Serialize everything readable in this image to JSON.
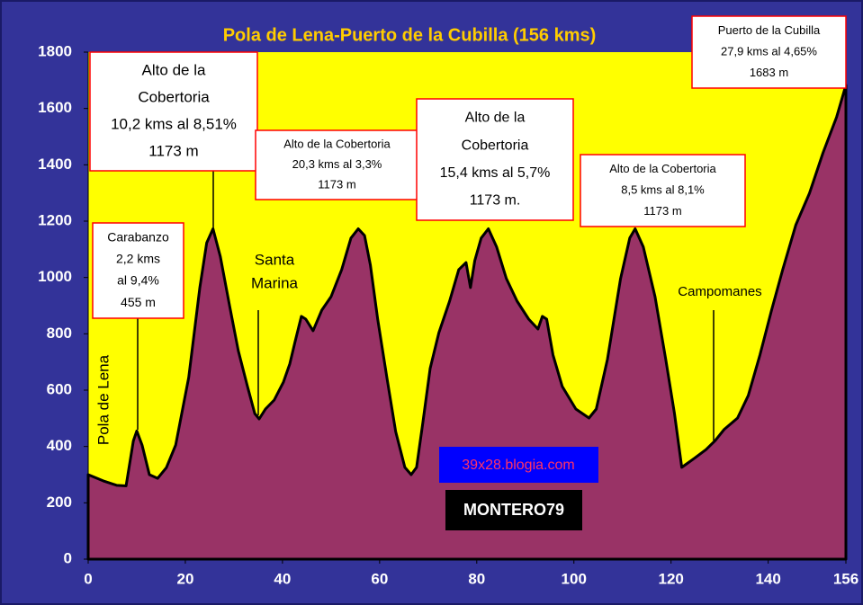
{
  "chart_data": {
    "type": "area",
    "title": "Pola de Lena-Puerto de la Cubilla (156 kms)",
    "color": "#993366",
    "x": [
      0,
      3.1,
      5.9,
      7.8,
      9.3,
      10,
      11.1,
      12.6,
      14.3,
      16.1,
      18,
      20.7,
      23,
      24.4,
      25.7,
      27.2,
      29.1,
      30.9,
      32.8,
      34.3,
      35.2,
      36.5,
      38.3,
      40.2,
      41.5,
      42.6,
      43.9,
      44.8,
      46.3,
      48.1,
      50,
      52.2,
      54.1,
      55.6,
      56.9,
      58.1,
      59.6,
      61.5,
      63.3,
      65.2,
      66.5,
      67.6,
      68.9,
      70.4,
      72.2,
      74.4,
      76.3,
      77.8,
      78.7,
      79.6,
      80.9,
      82.4,
      84.1,
      86.1,
      88.3,
      90.7,
      92.6,
      93.5,
      94.4,
      95.7,
      97.6,
      100.4,
      103.1,
      104.6,
      106.9,
      109.6,
      111.5,
      112.6,
      114.3,
      116.7,
      118.9,
      120.7,
      122.2,
      124.8,
      127.2,
      129.1,
      130.9,
      133.7,
      135.9,
      138.3,
      140.7,
      143,
      145.7,
      148.5,
      151.3,
      154.1,
      156
    ],
    "values": [
      300,
      278,
      262,
      260,
      420,
      455,
      405,
      300,
      287,
      325,
      405,
      645,
      965,
      1123,
      1173,
      1075,
      900,
      740,
      613,
      517,
      498,
      533,
      565,
      629,
      693,
      772,
      862,
      852,
      811,
      884,
      932,
      1028,
      1140,
      1173,
      1149,
      1044,
      852,
      645,
      453,
      326,
      300,
      326,
      485,
      677,
      804,
      916,
      1028,
      1053,
      964,
      1060,
      1140,
      1173,
      1108,
      996,
      916,
      852,
      817,
      862,
      852,
      725,
      613,
      533,
      501,
      533,
      709,
      996,
      1140,
      1173,
      1108,
      932,
      709,
      517,
      326,
      358,
      389,
      421,
      460,
      501,
      581,
      725,
      884,
      1028,
      1187,
      1299,
      1443,
      1570,
      1683
    ],
    "xlim": [
      0,
      156
    ],
    "xticks": [
      0,
      20,
      40,
      60,
      80,
      100,
      120,
      140,
      156
    ],
    "ylim": [
      0,
      1800
    ],
    "yticks": [
      0,
      200,
      400,
      600,
      800,
      1000,
      1200,
      1400,
      1600,
      1800
    ],
    "annotations": [
      {
        "lines": [
          "Carabanzo",
          "2,2 kms",
          "al 9,4%",
          "455 m"
        ]
      },
      {
        "lines": [
          "Alto de la",
          "Cobertoria",
          "10,2 kms al 8,51%",
          "1173 m"
        ]
      },
      {
        "lines": [
          "Alto de la Cobertoria",
          "20,3 kms al 3,3%",
          "1173 m"
        ]
      },
      {
        "lines": [
          "Alto de la",
          "Cobertoria",
          "15,4 kms al 5,7%",
          "1173 m."
        ]
      },
      {
        "lines": [
          "Alto de la Cobertoria",
          "8,5 kms al 8,1%",
          "1173 m"
        ]
      },
      {
        "lines": [
          "Puerto de la Cubilla",
          "27,9 kms al 4,65%",
          "1683 m"
        ]
      }
    ],
    "place_labels": [
      {
        "lines": [
          "Pola de Lena"
        ]
      },
      {
        "lines": [
          "Santa",
          "Marina"
        ]
      },
      {
        "lines": [
          "Campomanes"
        ]
      }
    ],
    "watermarks": [
      "39x28.blogia.com",
      "MONTERO79"
    ]
  }
}
